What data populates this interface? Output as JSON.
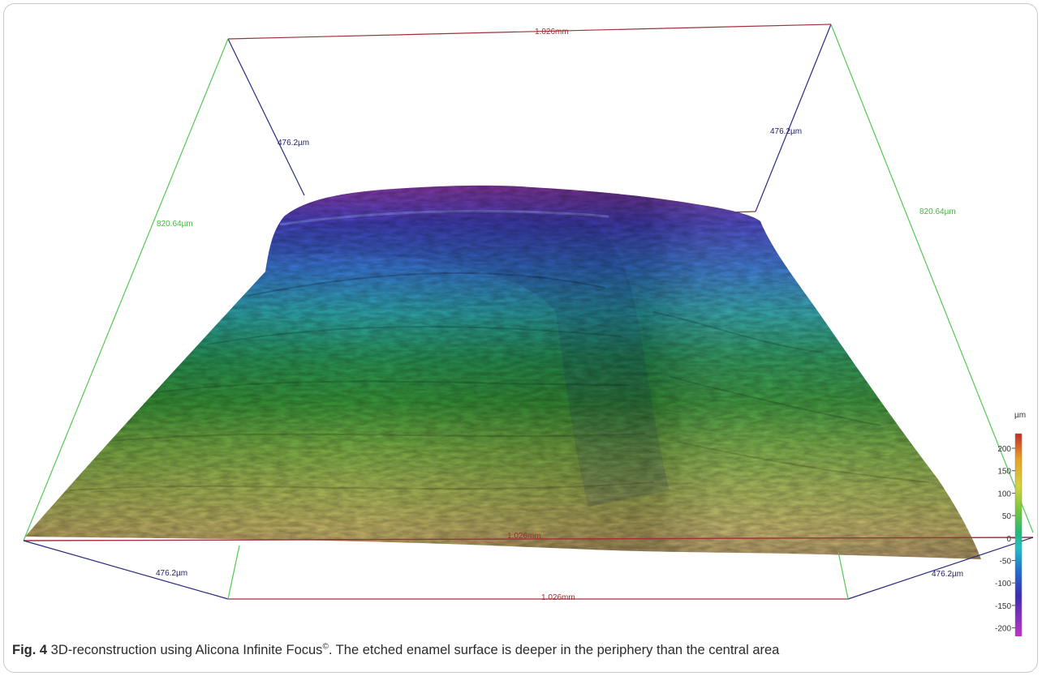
{
  "figure": {
    "dimensions": {
      "width_top": "1.026mm",
      "width_bottom": "1.026mm",
      "width_baseline": "1.026mm",
      "depth_top_left": "476.2µm",
      "depth_top_right": "476.2µm",
      "depth_bottom_left": "476.2µm",
      "depth_bottom_right": "476.2µm",
      "height_left": "820.64µm",
      "height_right": "820.64µm"
    },
    "colors": {
      "width_edge": "#a0303a",
      "depth_edge": "#2a2a80",
      "height_edge": "#55c855",
      "width_label": "#a03030",
      "depth_label": "#222266",
      "height_label": "#44b844"
    },
    "colorbar": {
      "unit": "µm",
      "ticks": [
        "200",
        "150",
        "100",
        "50",
        "0",
        "-50",
        "-100",
        "-150",
        "-200"
      ],
      "gradient": [
        "#c62828",
        "#e8a020",
        "#d6d23a",
        "#6cc63c",
        "#1fb97a",
        "#20c0c8",
        "#2070d0",
        "#3a2ab8",
        "#8a30c0",
        "#d030d0"
      ]
    },
    "surface_colors": [
      "#8c3aa8",
      "#4a44c8",
      "#3a7ad8",
      "#2faab0",
      "#2a9a5a",
      "#3a9a3a",
      "#7eb448",
      "#aebd5a",
      "#c9b86a",
      "#b79a68"
    ]
  },
  "caption": {
    "label": "Fig. 4",
    "text_before": " 3D-reconstruction using Alicona Infinite Focus",
    "superscript": "©",
    "text_after": ". The etched enamel surface is deeper in the periphery than the central area"
  }
}
